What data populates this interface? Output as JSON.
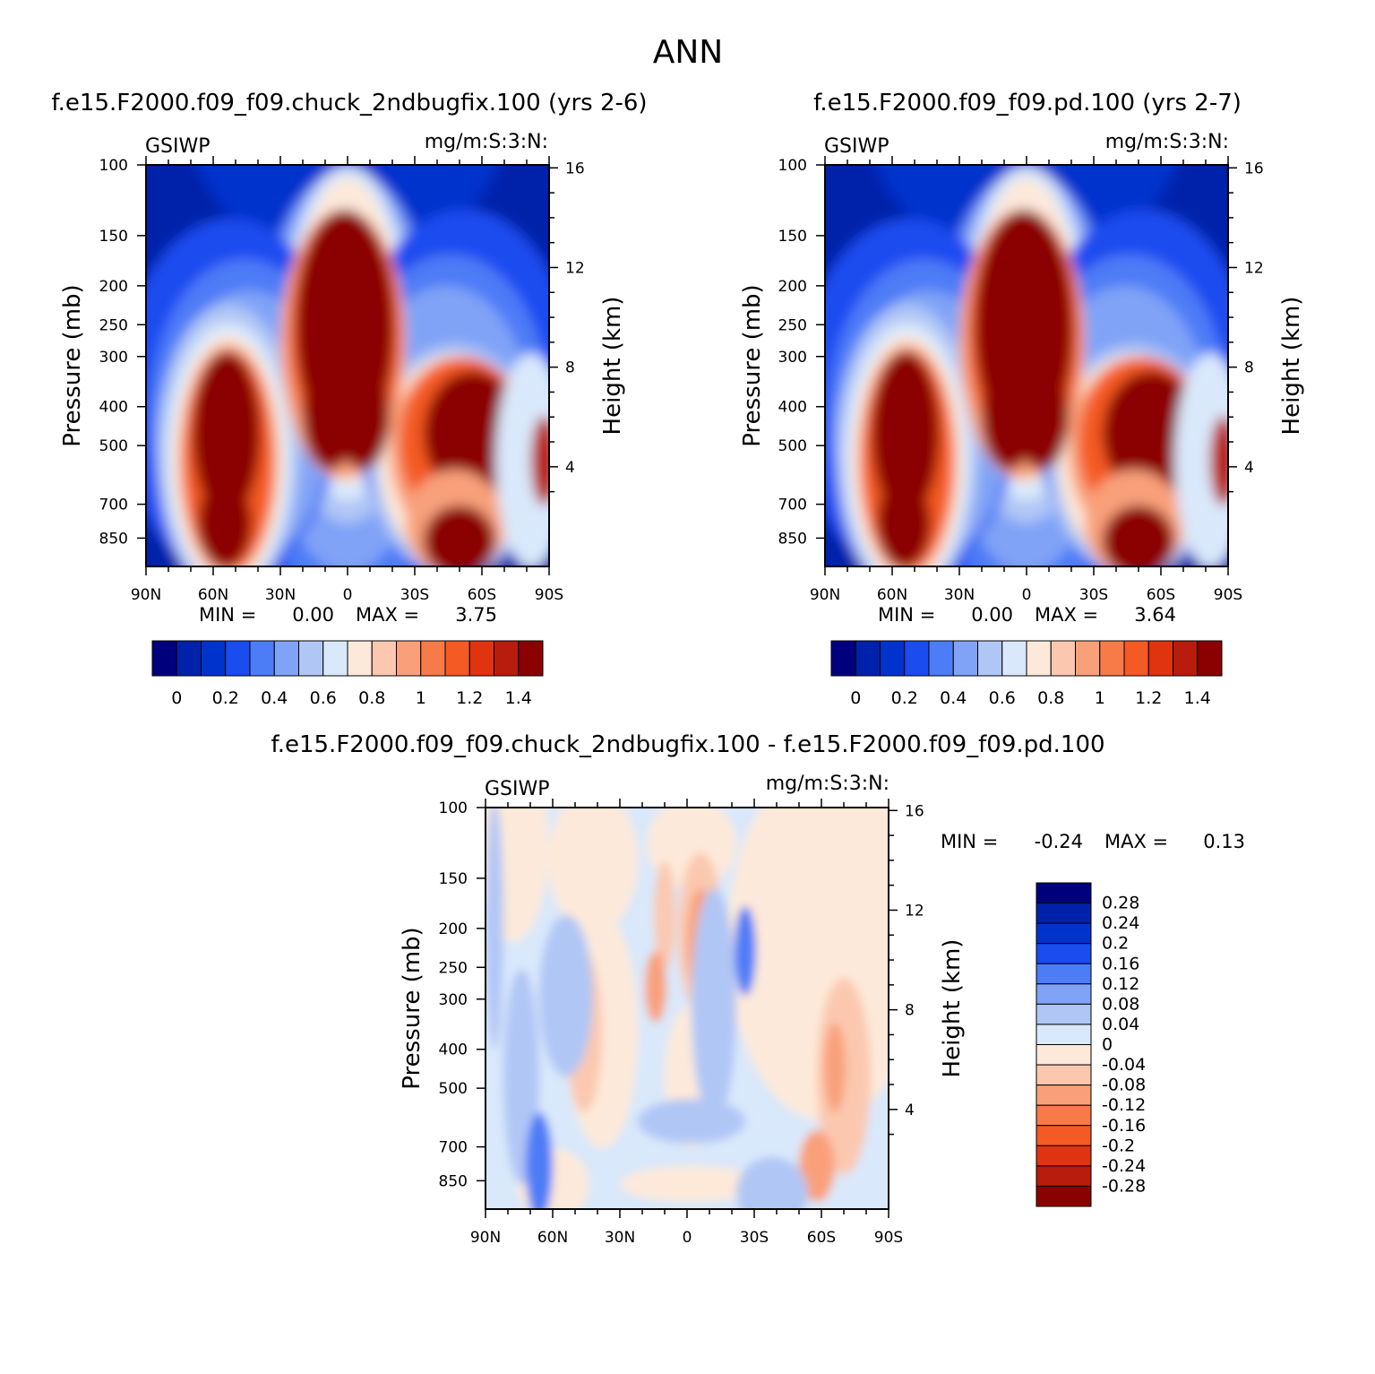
{
  "page_title": "ANN",
  "colors": {
    "top_palette": [
      "#00007f",
      "#0022aa",
      "#0033cc",
      "#1a4cf0",
      "#4d7cf7",
      "#80a3f7",
      "#b0c6f5",
      "#d9e8fb",
      "#fde9d9",
      "#fbc8af",
      "#f9a07a",
      "#f77a49",
      "#f45a24",
      "#e03410",
      "#b71c0c",
      "#8b0000"
    ],
    "diff_palette": [
      "#00007f",
      "#0022aa",
      "#0033cc",
      "#1a4cf0",
      "#4d7cf7",
      "#80a3f7",
      "#b0c6f5",
      "#d9e8fb",
      "#fde9d9",
      "#fbc8af",
      "#f9a07a",
      "#f77a49",
      "#f45a24",
      "#e03410",
      "#b71c0c",
      "#8b0000"
    ]
  },
  "chart_data": [
    {
      "type": "heatmap",
      "title": "f.e15.F2000.f09_f09.chuck_2ndbugfix.100 (yrs 2-6)",
      "variable": "GSIWP",
      "units": "mg/m:S:3:N:",
      "xlabel": "",
      "ylabel": "Pressure (mb)",
      "y2label": "Height (km)",
      "x_ticks": [
        "90N",
        "60N",
        "30N",
        "0",
        "30S",
        "60S",
        "90S"
      ],
      "x_range": [
        90,
        -90
      ],
      "y_ticks": [
        100,
        150,
        200,
        250,
        300,
        400,
        500,
        700,
        850
      ],
      "y2_ticks": [
        16,
        12,
        8,
        4
      ],
      "min_label": "MIN =",
      "min_value": "0.00",
      "max_label": "MAX =",
      "max_value": "3.75",
      "levels": [
        0,
        0.1,
        0.2,
        0.3,
        0.4,
        0.5,
        0.6,
        0.7,
        0.8,
        0.9,
        1.0,
        1.1,
        1.2,
        1.3,
        1.4
      ],
      "colorbar_labels": [
        "0",
        "0.2",
        "0.4",
        "0.6",
        "0.8",
        "1",
        "1.2",
        "1.4"
      ]
    },
    {
      "type": "heatmap",
      "title": "f.e15.F2000.f09_f09.pd.100 (yrs 2-7)",
      "variable": "GSIWP",
      "units": "mg/m:S:3:N:",
      "xlabel": "",
      "ylabel": "Pressure (mb)",
      "y2label": "Height (km)",
      "x_ticks": [
        "90N",
        "60N",
        "30N",
        "0",
        "30S",
        "60S",
        "90S"
      ],
      "x_range": [
        90,
        -90
      ],
      "y_ticks": [
        100,
        150,
        200,
        250,
        300,
        400,
        500,
        700,
        850
      ],
      "y2_ticks": [
        16,
        12,
        8,
        4
      ],
      "min_label": "MIN =",
      "min_value": "0.00",
      "max_label": "MAX =",
      "max_value": "3.64",
      "levels": [
        0,
        0.1,
        0.2,
        0.3,
        0.4,
        0.5,
        0.6,
        0.7,
        0.8,
        0.9,
        1.0,
        1.1,
        1.2,
        1.3,
        1.4
      ],
      "colorbar_labels": [
        "0",
        "0.2",
        "0.4",
        "0.6",
        "0.8",
        "1",
        "1.2",
        "1.4"
      ]
    },
    {
      "type": "heatmap",
      "title": "f.e15.F2000.f09_f09.chuck_2ndbugfix.100 - f.e15.F2000.f09_f09.pd.100",
      "variable": "GSIWP",
      "units": "mg/m:S:3:N:",
      "xlabel": "",
      "ylabel": "Pressure (mb)",
      "y2label": "Height (km)",
      "x_ticks": [
        "90N",
        "60N",
        "30N",
        "0",
        "30S",
        "60S",
        "90S"
      ],
      "x_range": [
        90,
        -90
      ],
      "y_ticks": [
        100,
        150,
        200,
        250,
        300,
        400,
        500,
        700,
        850
      ],
      "y2_ticks": [
        16,
        12,
        8,
        4
      ],
      "min_label": "MIN =",
      "min_value": "-0.24",
      "max_label": "MAX =",
      "max_value": "0.13",
      "colorbar_labels": [
        "0.28",
        "0.24",
        "0.2",
        "0.16",
        "0.12",
        "0.08",
        "0.04",
        "0",
        "-0.04",
        "-0.08",
        "-0.12",
        "-0.16",
        "-0.2",
        "-0.24",
        "-0.28"
      ]
    }
  ]
}
